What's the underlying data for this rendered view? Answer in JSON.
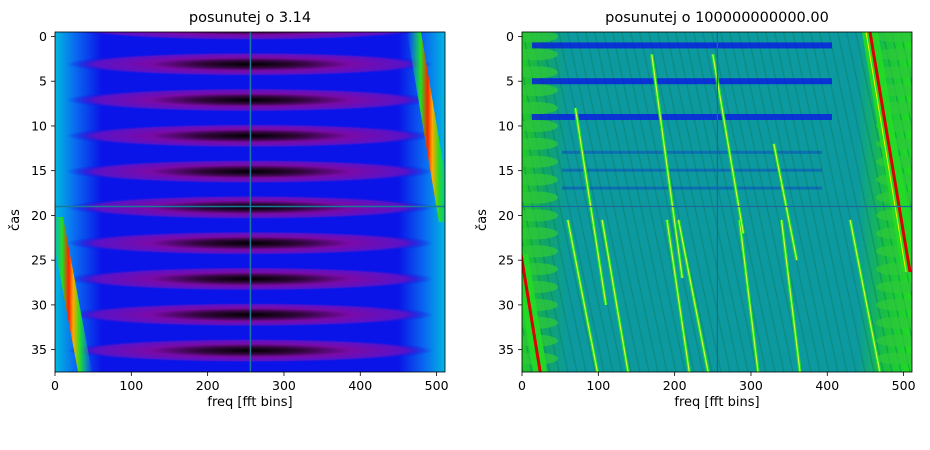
{
  "chart_data": [
    {
      "type": "heatmap",
      "title": "posunutej o 3.14",
      "xlabel": "freq [fft bins]",
      "ylabel": "čas",
      "xlim": [
        0,
        511
      ],
      "ylim": [
        37.5,
        -0.5
      ],
      "xticks": [
        0,
        100,
        200,
        300,
        400,
        500
      ],
      "yticks": [
        0,
        5,
        10,
        15,
        20,
        25,
        30,
        35
      ],
      "crosshair": {
        "x": 256,
        "y": 19
      },
      "colors": {
        "dark": "#000000",
        "purple": "#7a0aa8",
        "blue": "#0a10e8",
        "cyan": "#00b4d8",
        "green": "#22dd22",
        "red": "#dd0000",
        "crosshair": "#1a7a9a"
      }
    },
    {
      "type": "heatmap",
      "title": "posunutej o 100000000000.00",
      "xlabel": "freq [fft bins]",
      "ylabel": "čas",
      "xlim": [
        0,
        511
      ],
      "ylim": [
        37.5,
        -0.5
      ],
      "xticks": [
        0,
        100,
        200,
        300,
        400,
        500
      ],
      "yticks": [
        0,
        5,
        10,
        15,
        20,
        25,
        30,
        35
      ],
      "crosshair": {
        "x": 256,
        "y": 19
      },
      "colors": {
        "base": "#0c9aa0",
        "blue": "#0a10e8",
        "green": "#1fd01f",
        "bright": "#ccff44",
        "red": "#dd0000",
        "crosshair": "#1a6a9a"
      }
    }
  ]
}
